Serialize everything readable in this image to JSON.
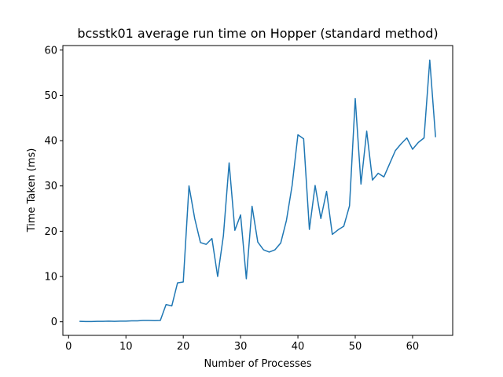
{
  "chart_data": {
    "type": "line",
    "title": "bcsstk01 average run time on Hopper (standard method)",
    "xlabel": "Number of Processes",
    "ylabel": "Time Taken (ms)",
    "xlim": [
      -1,
      67
    ],
    "ylim": [
      -3,
      61
    ],
    "xticks": [
      0,
      10,
      20,
      30,
      40,
      50,
      60
    ],
    "yticks": [
      0,
      10,
      20,
      30,
      40,
      50,
      60
    ],
    "grid": false,
    "series": [
      {
        "color": "#1f77b4",
        "x": [
          2,
          3,
          4,
          5,
          6,
          7,
          8,
          9,
          10,
          11,
          12,
          13,
          14,
          15,
          16,
          17,
          18,
          19,
          20,
          21,
          22,
          23,
          24,
          25,
          26,
          27,
          28,
          29,
          30,
          31,
          32,
          33,
          34,
          35,
          36,
          37,
          38,
          39,
          40,
          41,
          42,
          43,
          44,
          45,
          46,
          47,
          48,
          49,
          50,
          51,
          52,
          53,
          54,
          55,
          56,
          57,
          58,
          59,
          60,
          61,
          62,
          63,
          64
        ],
        "y": [
          0.1,
          0.05,
          0.05,
          0.1,
          0.1,
          0.15,
          0.1,
          0.15,
          0.15,
          0.2,
          0.2,
          0.3,
          0.3,
          0.25,
          0.3,
          3.8,
          3.5,
          8.6,
          8.8,
          30.0,
          22.8,
          17.5,
          17.1,
          18.4,
          10.0,
          19.0,
          35.1,
          20.2,
          23.6,
          9.5,
          25.5,
          17.6,
          15.9,
          15.4,
          15.9,
          17.4,
          22.4,
          30.2,
          41.3,
          40.4,
          20.4,
          30.1,
          22.8,
          28.8,
          19.3,
          20.3,
          21.1,
          25.6,
          49.3,
          30.4,
          42.1,
          31.3,
          32.8,
          32.0,
          34.9,
          37.8,
          39.3,
          40.6,
          38.1,
          39.6,
          40.6,
          57.8,
          40.9
        ]
      }
    ]
  }
}
